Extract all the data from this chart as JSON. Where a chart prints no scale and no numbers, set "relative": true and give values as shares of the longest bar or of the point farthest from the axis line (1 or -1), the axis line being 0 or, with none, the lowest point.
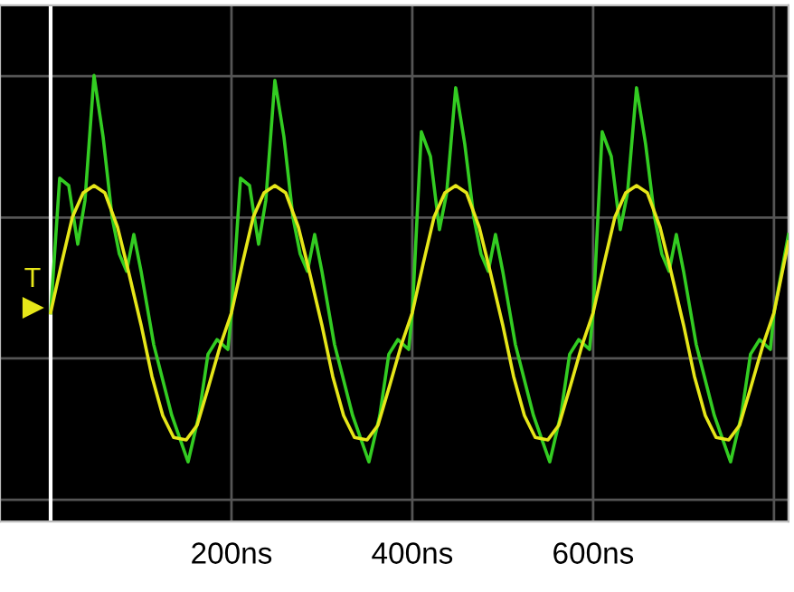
{
  "chart_data": {
    "type": "line",
    "relative": true,
    "grid": true,
    "marker": "none",
    "line_style": "solid",
    "xlim": [
      -56,
      816
    ],
    "xticks": [
      {
        "value": 200,
        "label": "200ns"
      },
      {
        "value": 400,
        "label": "400ns"
      },
      {
        "value": 600,
        "label": "600ns"
      },
      {
        "value": 800,
        "label": null
      }
    ],
    "ref_lines": [
      {
        "axis": "x",
        "value": 0,
        "color": "#ffffff"
      }
    ],
    "annotations": [
      {
        "text": "T",
        "x": -20,
        "y": -0.37
      }
    ],
    "series": [
      {
        "color": "#33cc22",
        "x": [
          0,
          10,
          20,
          30,
          38,
          48,
          58,
          68,
          76,
          84,
          92,
          100,
          114,
          134,
          152,
          164,
          174,
          184,
          196,
          200,
          210,
          220,
          230,
          238,
          248,
          258,
          268,
          276,
          284,
          292,
          300,
          314,
          334,
          352,
          364,
          374,
          384,
          396,
          400,
          410,
          420,
          430,
          438,
          448,
          458,
          468,
          476,
          484,
          492,
          500,
          514,
          534,
          552,
          564,
          574,
          584,
          596,
          600,
          610,
          620,
          630,
          638,
          648,
          658,
          668,
          676,
          684,
          692,
          700,
          714,
          734,
          752,
          764,
          774,
          784,
          796,
          800,
          816
        ],
        "values": [
          -0.39,
          0.16,
          0.13,
          -0.11,
          0.07,
          0.58,
          0.33,
          0.0,
          -0.15,
          -0.22,
          -0.07,
          -0.22,
          -0.52,
          -0.81,
          -1.0,
          -0.81,
          -0.56,
          -0.5,
          -0.54,
          -0.39,
          0.16,
          0.13,
          -0.11,
          0.07,
          0.56,
          0.33,
          0.0,
          -0.15,
          -0.22,
          -0.07,
          -0.22,
          -0.52,
          -0.81,
          -1.0,
          -0.81,
          -0.56,
          -0.5,
          -0.54,
          -0.39,
          0.35,
          0.25,
          -0.05,
          0.1,
          0.53,
          0.3,
          0.0,
          -0.15,
          -0.22,
          -0.07,
          -0.22,
          -0.52,
          -0.81,
          -1.0,
          -0.81,
          -0.56,
          -0.5,
          -0.54,
          -0.39,
          0.35,
          0.25,
          -0.05,
          0.1,
          0.53,
          0.3,
          0.0,
          -0.15,
          -0.22,
          -0.07,
          -0.22,
          -0.52,
          -0.81,
          -1.0,
          -0.81,
          -0.56,
          -0.5,
          -0.54,
          -0.39,
          -0.07
        ]
      },
      {
        "color": "#e6e619",
        "x": [
          0,
          12,
          24,
          36,
          48,
          60,
          74,
          86,
          100,
          112,
          124,
          136,
          150,
          162,
          174,
          188,
          200,
          212,
          224,
          236,
          248,
          260,
          274,
          286,
          300,
          312,
          324,
          336,
          350,
          362,
          374,
          388,
          400,
          412,
          424,
          436,
          448,
          460,
          474,
          486,
          500,
          512,
          524,
          536,
          550,
          562,
          574,
          588,
          600,
          612,
          624,
          636,
          648,
          660,
          674,
          686,
          700,
          712,
          724,
          736,
          750,
          762,
          774,
          788,
          800,
          816
        ],
        "values": [
          -0.39,
          -0.19,
          0.0,
          0.1,
          0.13,
          0.1,
          -0.04,
          -0.22,
          -0.44,
          -0.65,
          -0.81,
          -0.9,
          -0.91,
          -0.85,
          -0.7,
          -0.52,
          -0.39,
          -0.19,
          0.0,
          0.1,
          0.13,
          0.1,
          -0.04,
          -0.22,
          -0.44,
          -0.65,
          -0.81,
          -0.9,
          -0.91,
          -0.85,
          -0.7,
          -0.52,
          -0.39,
          -0.19,
          0.0,
          0.1,
          0.13,
          0.1,
          -0.04,
          -0.22,
          -0.44,
          -0.65,
          -0.81,
          -0.9,
          -0.91,
          -0.85,
          -0.7,
          -0.52,
          -0.39,
          -0.19,
          0.0,
          0.1,
          0.13,
          0.1,
          -0.04,
          -0.22,
          -0.44,
          -0.65,
          -0.81,
          -0.9,
          -0.91,
          -0.85,
          -0.7,
          -0.52,
          -0.39,
          -0.1
        ]
      }
    ]
  }
}
